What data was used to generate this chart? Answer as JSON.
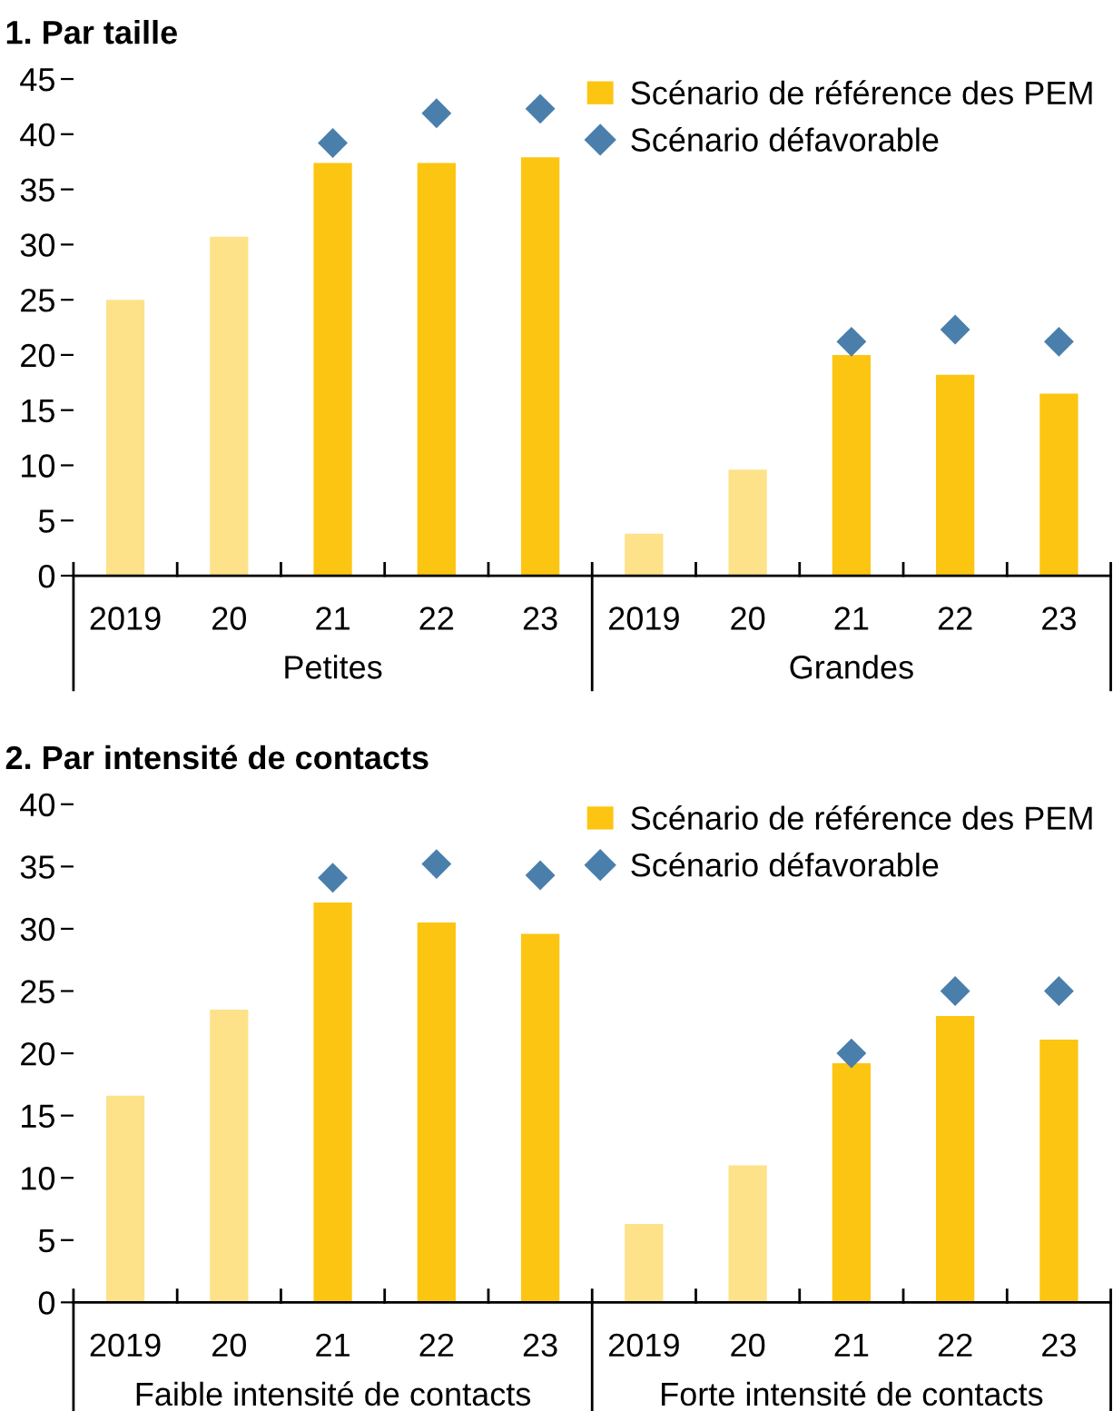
{
  "chart_data": [
    {
      "type": "bar",
      "title": "1. Par taille",
      "categories": [
        "2019",
        "20",
        "21",
        "22",
        "23",
        "2019",
        "20",
        "21",
        "22",
        "23"
      ],
      "series": [
        {
          "name": "Scénario de référence des PEM",
          "color": "#fcc511",
          "colors": [
            "#fde289",
            "#fde289",
            "#fcc511",
            "#fcc511",
            "#fcc511",
            "#fde289",
            "#fde289",
            "#fcc511",
            "#fcc511",
            "#fcc511"
          ],
          "values": [
            25.0,
            30.7,
            37.4,
            37.4,
            37.9,
            3.8,
            9.6,
            20.0,
            18.2,
            16.5
          ]
        },
        {
          "name": "Scénario défavorable",
          "type": "scatter",
          "marker": "diamond",
          "color": "#4a7fac",
          "values": [
            null,
            null,
            39.2,
            41.9,
            42.3,
            null,
            null,
            21.2,
            22.3,
            21.2
          ]
        }
      ],
      "ylim": [
        0,
        45
      ],
      "yticks": [
        0,
        5,
        10,
        15,
        20,
        25,
        30,
        35,
        40,
        45
      ],
      "legend": "top right",
      "annotations": [
        "Petites",
        "Grandes"
      ]
    },
    {
      "type": "bar",
      "title": "2. Par intensité de contacts",
      "categories": [
        "2019",
        "20",
        "21",
        "22",
        "23",
        "2019",
        "20",
        "21",
        "22",
        "23"
      ],
      "series": [
        {
          "name": "Scénario de référence des PEM",
          "color": "#fcc511",
          "colors": [
            "#fde289",
            "#fde289",
            "#fcc511",
            "#fcc511",
            "#fcc511",
            "#fde289",
            "#fde289",
            "#fcc511",
            "#fcc511",
            "#fcc511"
          ],
          "values": [
            16.6,
            23.5,
            32.1,
            30.5,
            29.6,
            6.3,
            11.0,
            19.2,
            23.0,
            21.1
          ]
        },
        {
          "name": "Scénario défavorable",
          "type": "scatter",
          "marker": "diamond",
          "color": "#4a7fac",
          "values": [
            null,
            null,
            34.1,
            35.2,
            34.3,
            null,
            null,
            20.0,
            25.0,
            25.0
          ]
        }
      ],
      "ylim": [
        0,
        40
      ],
      "yticks": [
        0,
        5,
        10,
        15,
        20,
        25,
        30,
        35,
        40
      ],
      "legend": "top right",
      "annotations": [
        "Faible intensité de contacts",
        "Forte intensité de contacts"
      ]
    }
  ]
}
